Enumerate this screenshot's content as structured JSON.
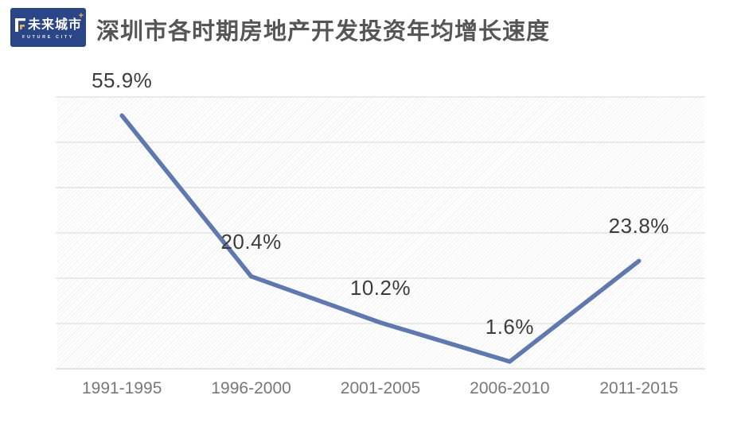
{
  "logo": {
    "cn": "未来城市",
    "en": "FUTURE CITY",
    "bg_color": "#2a4687",
    "accent_color": "#e9b54d",
    "sparkle": "+"
  },
  "header": {
    "title": "深圳市各时期房地产开发投资年均增长速度"
  },
  "chart_data": {
    "type": "line",
    "title": "深圳市各时期房地产开发投资年均增长速度",
    "categories": [
      "1991-1995",
      "1996-2000",
      "2001-2005",
      "2006-2010",
      "2011-2015"
    ],
    "values": [
      55.9,
      20.4,
      10.2,
      1.6,
      23.8
    ],
    "data_labels": [
      "55.9%",
      "20.4%",
      "10.2%",
      "1.6%",
      "23.8%"
    ],
    "xlabel": "",
    "ylabel": "",
    "ylim": [
      0,
      60
    ],
    "grid_step": 10,
    "grid": "horizontal",
    "legend_position": "none",
    "line_color": "#5f79af",
    "gridline_color": "#d7d7d7",
    "axis_line_color": "#c9c9c9",
    "plot_hatch": "diagonal"
  }
}
